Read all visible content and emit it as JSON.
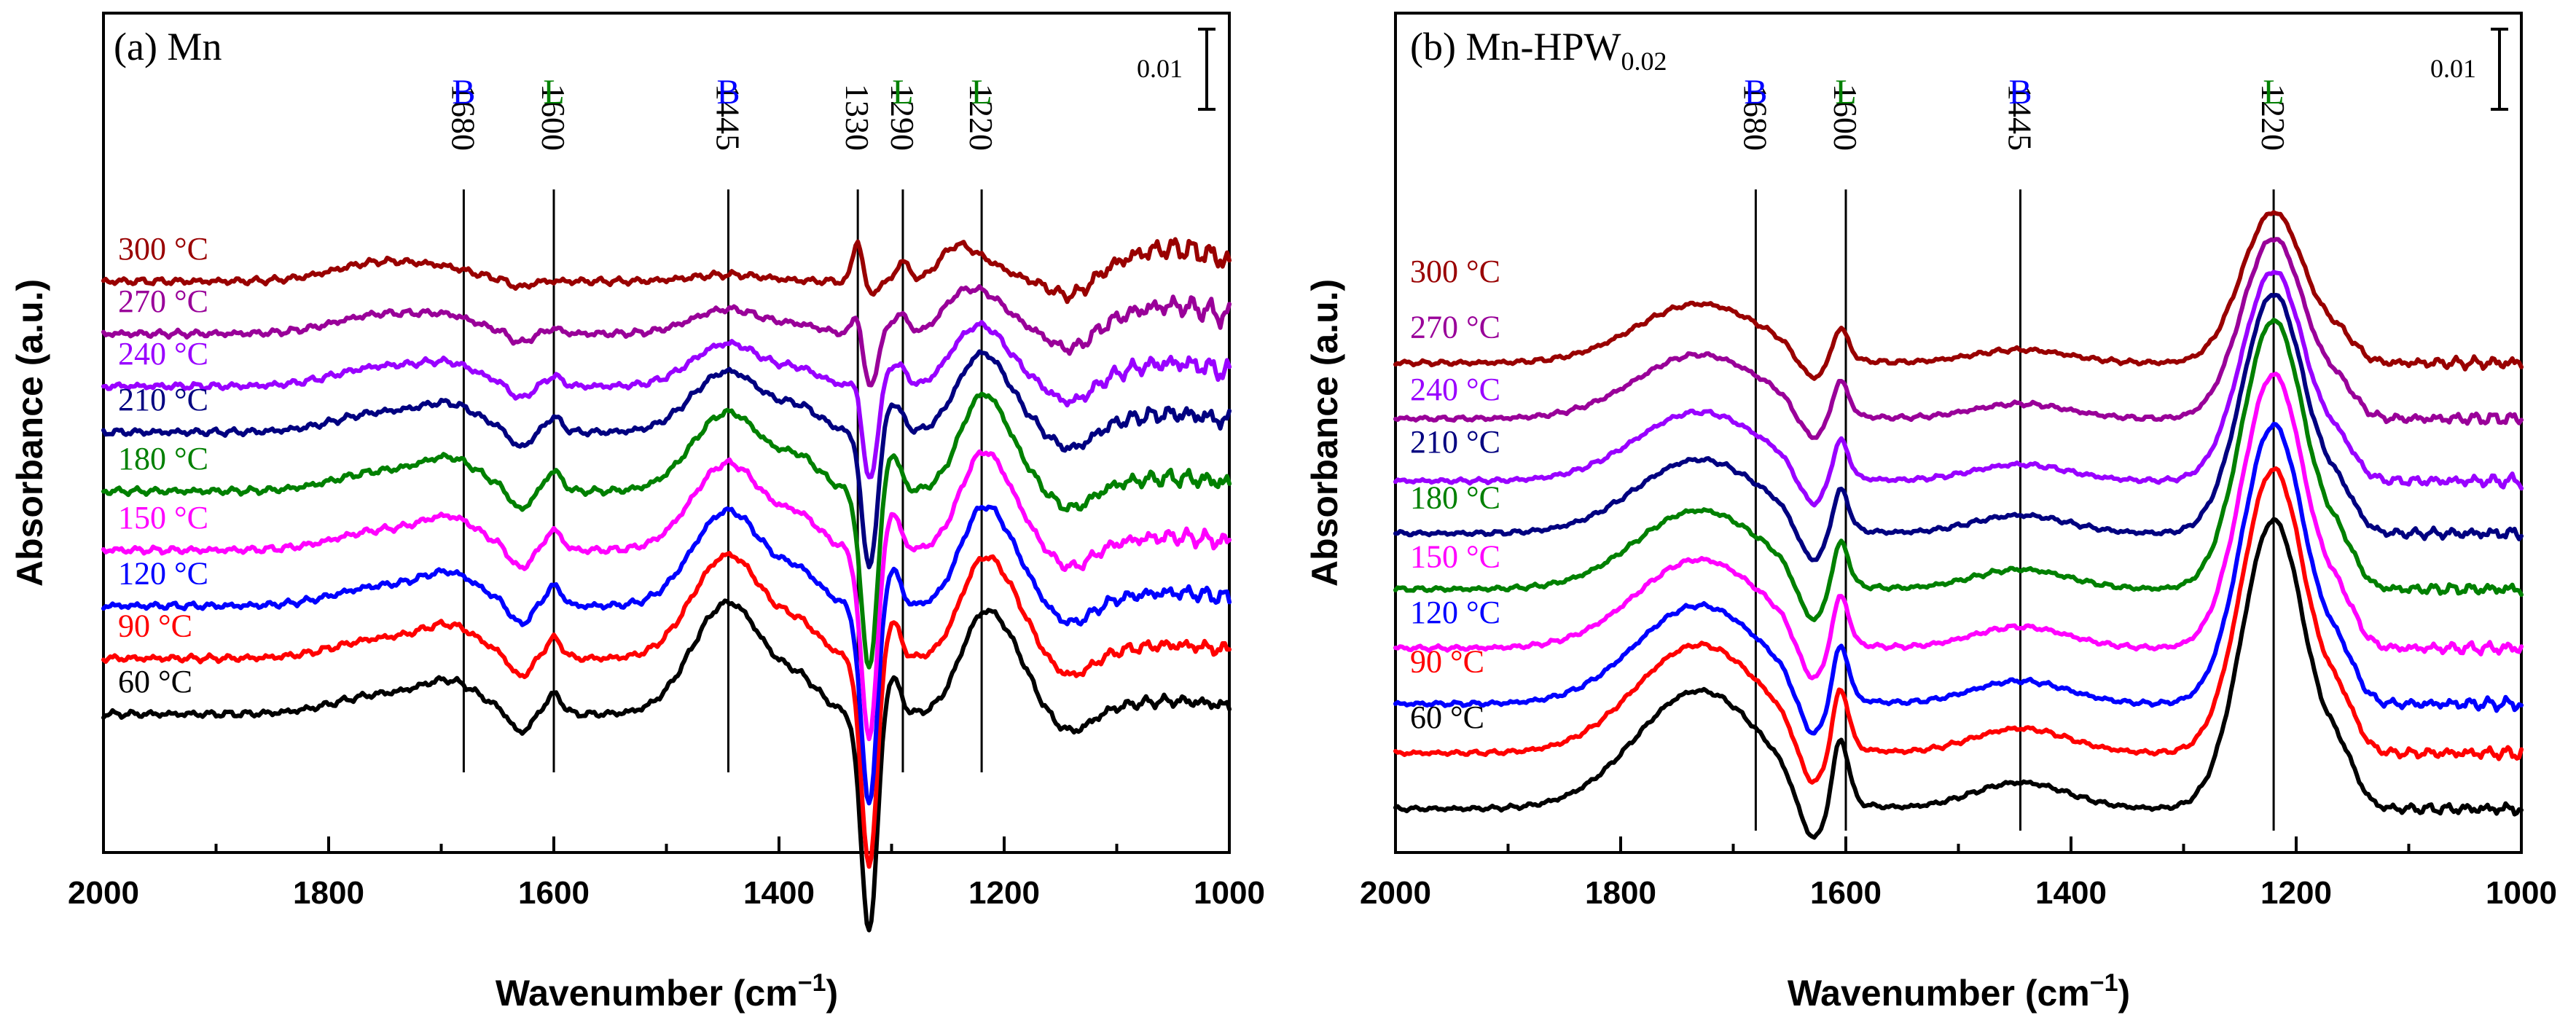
{
  "colors": {
    "60": "#000000",
    "90": "#ff0000",
    "120": "#0000ff",
    "150": "#ff00ff",
    "180": "#008000",
    "210": "#000080",
    "240": "#9900ff",
    "270": "#990099",
    "300": "#990000",
    "B": "#0000ff",
    "L": "#008000"
  },
  "chart_data": [
    {
      "type": "line",
      "title": "(a) Mn",
      "xlabel": "Wavenumber (cm⁻¹)",
      "ylabel": "Absorbance (a.u.)",
      "xlim": [
        2000,
        1000
      ],
      "xticks": [
        2000,
        1800,
        1600,
        1400,
        1200,
        1000
      ],
      "scale_bar": "0.01",
      "series_labels": [
        "60 °C",
        "90 °C",
        "120 °C",
        "150 °C",
        "180 °C",
        "210 °C",
        "240 °C",
        "270 °C",
        "300 °C"
      ],
      "series_keys": [
        "60",
        "90",
        "120",
        "150",
        "180",
        "210",
        "240",
        "270",
        "300"
      ],
      "baseline_offsets": [
        0.0,
        0.0085,
        0.0165,
        0.025,
        0.034,
        0.043,
        0.05,
        0.058,
        0.066
      ],
      "peaks": [
        {
          "x": 1680,
          "label": "1680",
          "letter": "B"
        },
        {
          "x": 1600,
          "label": "1600",
          "letter": "L"
        },
        {
          "x": 1445,
          "label": "1445",
          "letter": "B"
        },
        {
          "x": 1330,
          "label": "1330",
          "letter": ""
        },
        {
          "x": 1290,
          "label": "1290",
          "letter": "L"
        },
        {
          "x": 1220,
          "label": "1220",
          "letter": "L"
        }
      ],
      "bands": [
        [
          [
            1750,
            60,
            0.003,
            0.0,
            0.0
          ]
        ],
        [
          [
            1690,
            35,
            0.004,
            0.004,
            0.001
          ],
          [
            1630,
            12,
            -0.003,
            -0.003,
            -0.001
          ],
          [
            1600,
            10,
            0.003,
            0.003,
            0.0
          ],
          [
            1445,
            45,
            0.017,
            0.012,
            0.001
          ],
          [
            1380,
            25,
            0.004,
            0.004,
            0.0
          ],
          [
            1320,
            10,
            -0.033,
            -0.027,
            -0.002
          ],
          [
            1330,
            6,
            0.0,
            0.0,
            0.007
          ],
          [
            1300,
            10,
            0.006,
            0.006,
            0.0
          ],
          [
            1290,
            8,
            0.0,
            0.0,
            0.003
          ],
          [
            1220,
            28,
            0.014,
            0.014,
            0.003
          ],
          [
            1245,
            20,
            0.0,
            0.0,
            0.004
          ],
          [
            1190,
            25,
            0.006,
            0.003,
            0.0
          ],
          [
            1140,
            25,
            -0.003,
            -0.003,
            -0.003
          ],
          [
            1050,
            70,
            0.002,
            0.002,
            0.005
          ]
        ]
      ]
    },
    {
      "type": "line",
      "title": "(b) Mn-HPW",
      "title_sub": "0.02",
      "xlabel": "Wavenumber (cm⁻¹)",
      "ylabel": "Absorbance (a.u.)",
      "xlim": [
        2000,
        1000
      ],
      "xticks": [
        2000,
        1800,
        1600,
        1400,
        1200,
        1000
      ],
      "scale_bar": "0.01",
      "series_labels": [
        "60 °C",
        "90 °C",
        "120 °C",
        "150 °C",
        "180 °C",
        "210 °C",
        "240 °C",
        "270 °C",
        "300 °C"
      ],
      "series_keys": [
        "60",
        "90",
        "120",
        "150",
        "180",
        "210",
        "240",
        "270",
        "300"
      ],
      "baseline_offsets": [
        0.0,
        0.0085,
        0.016,
        0.0245,
        0.0335,
        0.042,
        0.05,
        0.0595,
        0.068
      ],
      "peaks": [
        {
          "x": 1680,
          "label": "1680",
          "letter": "B"
        },
        {
          "x": 1600,
          "label": "1600",
          "letter": "L"
        },
        {
          "x": 1445,
          "label": "1445",
          "letter": "B"
        },
        {
          "x": 1220,
          "label": "1220",
          "letter": "L"
        }
      ],
      "bands": [
        [
          [
            1730,
            80,
            0.009,
            0.003,
            0.0
          ],
          [
            1630,
            18,
            -0.004,
            -0.003,
            0.0
          ],
          [
            1605,
            10,
            0.005,
            0.002,
            0.0
          ],
          [
            1445,
            60,
            0.002,
            0.001,
            0.0
          ],
          [
            1220,
            40,
            0.022,
            0.019,
            0.001
          ],
          [
            1160,
            20,
            0.003,
            0.002,
            0.0
          ]
        ]
      ]
    }
  ]
}
